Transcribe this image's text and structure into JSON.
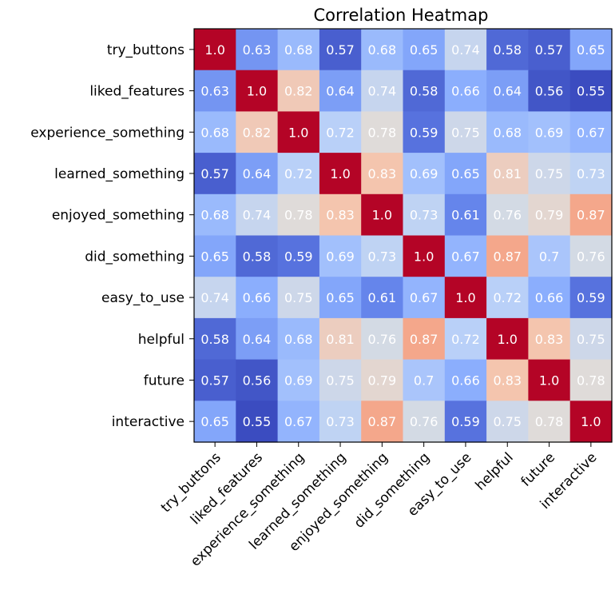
{
  "chart_data": {
    "type": "heatmap",
    "title": "Correlation Heatmap",
    "xlabel": "",
    "ylabel": "",
    "categories": [
      "try_buttons",
      "liked_features",
      "experience_something",
      "learned_something",
      "enjoyed_something",
      "did_something",
      "easy_to_use",
      "helpful",
      "future",
      "interactive"
    ],
    "labels": [
      [
        "1.0",
        "0.63",
        "0.68",
        "0.57",
        "0.68",
        "0.65",
        "0.74",
        "0.58",
        "0.57",
        "0.65"
      ],
      [
        "0.63",
        "1.0",
        "0.82",
        "0.64",
        "0.74",
        "0.58",
        "0.66",
        "0.64",
        "0.56",
        "0.55"
      ],
      [
        "0.68",
        "0.82",
        "1.0",
        "0.72",
        "0.78",
        "0.59",
        "0.75",
        "0.68",
        "0.69",
        "0.67"
      ],
      [
        "0.57",
        "0.64",
        "0.72",
        "1.0",
        "0.83",
        "0.69",
        "0.65",
        "0.81",
        "0.75",
        "0.73"
      ],
      [
        "0.68",
        "0.74",
        "0.78",
        "0.83",
        "1.0",
        "0.73",
        "0.61",
        "0.76",
        "0.79",
        "0.87"
      ],
      [
        "0.65",
        "0.58",
        "0.59",
        "0.69",
        "0.73",
        "1.0",
        "0.67",
        "0.87",
        "0.7",
        "0.76"
      ],
      [
        "0.74",
        "0.66",
        "0.75",
        "0.65",
        "0.61",
        "0.67",
        "1.0",
        "0.72",
        "0.66",
        "0.59"
      ],
      [
        "0.58",
        "0.64",
        "0.68",
        "0.81",
        "0.76",
        "0.87",
        "0.72",
        "1.0",
        "0.83",
        "0.75"
      ],
      [
        "0.57",
        "0.56",
        "0.69",
        "0.75",
        "0.79",
        "0.7",
        "0.66",
        "0.83",
        "1.0",
        "0.78"
      ],
      [
        "0.65",
        "0.55",
        "0.67",
        "0.73",
        "0.87",
        "0.76",
        "0.59",
        "0.75",
        "0.78",
        "1.0"
      ]
    ],
    "colormap": "coolwarm",
    "vmin": 0.55,
    "vmax": 1.0,
    "grid": false,
    "legend": "none"
  }
}
